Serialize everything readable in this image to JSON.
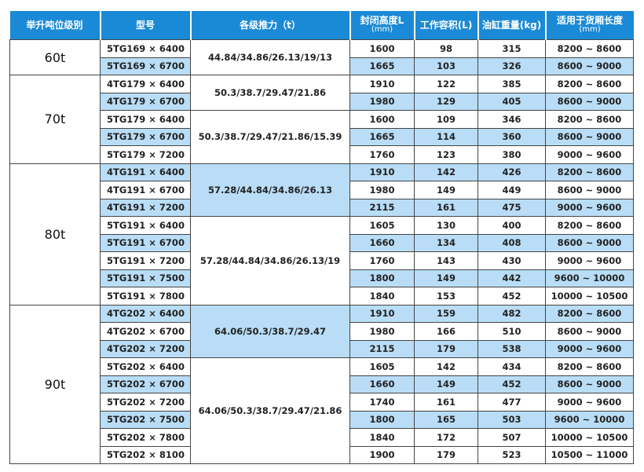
{
  "header": [
    {
      "title": "举升吨位级别"
    },
    {
      "title": "型号"
    },
    {
      "title": "各级推力（t）"
    },
    {
      "title": "封闭高度L",
      "unit": "(mm)"
    },
    {
      "title": "工作容积(L)"
    },
    {
      "title": "油缸重量(kg)"
    },
    {
      "title": "适用于货厢长度",
      "unit": "(mm)"
    }
  ],
  "groups": [
    {
      "tonnage": "60t",
      "subgroups": [
        {
          "thrust": "44.84/34.86/26.13/19/13",
          "shaded": false,
          "rows": [
            {
              "model": "5TG169 × 6400",
              "height": "1600",
              "volume": "98",
              "weight": "315",
              "length": "8200 ~ 8600",
              "shaded": false
            },
            {
              "model": "5TG169 × 6700",
              "height": "1665",
              "volume": "103",
              "weight": "326",
              "length": "8600 ~ 9000",
              "shaded": true
            }
          ]
        }
      ]
    },
    {
      "tonnage": "70t",
      "subgroups": [
        {
          "thrust": "50.3/38.7/29.47/21.86",
          "shaded": false,
          "rows": [
            {
              "model": "4TG179 × 6400",
              "height": "1910",
              "volume": "122",
              "weight": "385",
              "length": "8200 ~ 8600",
              "shaded": false
            },
            {
              "model": "4TG179 × 6700",
              "height": "1980",
              "volume": "129",
              "weight": "405",
              "length": "8600 ~ 9000",
              "shaded": true
            }
          ]
        },
        {
          "thrust": "50.3/38.7/29.47/21.86/15.39",
          "shaded": false,
          "rows": [
            {
              "model": "5TG179 × 6400",
              "height": "1600",
              "volume": "109",
              "weight": "346",
              "length": "8200 ~ 8600",
              "shaded": false
            },
            {
              "model": "5TG179 × 6700",
              "height": "1665",
              "volume": "114",
              "weight": "360",
              "length": "8600 ~ 9000",
              "shaded": true
            },
            {
              "model": "5TG179 × 7200",
              "height": "1760",
              "volume": "123",
              "weight": "380",
              "length": "9000 ~ 9600",
              "shaded": false
            }
          ]
        }
      ]
    },
    {
      "tonnage": "80t",
      "subgroups": [
        {
          "thrust": "57.28/44.84/34.86/26.13",
          "shaded": true,
          "rows": [
            {
              "model": "4TG191 × 6400",
              "height": "1910",
              "volume": "142",
              "weight": "426",
              "length": "8200 ~ 8600",
              "shaded": true
            },
            {
              "model": "4TG191 × 6700",
              "height": "1980",
              "volume": "149",
              "weight": "449",
              "length": "8600 ~ 9000",
              "shaded": false
            },
            {
              "model": "4TG191 × 7200",
              "height": "2115",
              "volume": "161",
              "weight": "475",
              "length": "9000 ~ 9600",
              "shaded": true
            }
          ]
        },
        {
          "thrust": "57.28/44.84/34.86/26.13/19",
          "shaded": false,
          "rows": [
            {
              "model": "5TG191 × 6400",
              "height": "1605",
              "volume": "130",
              "weight": "400",
              "length": "8200 ~ 8600",
              "shaded": false
            },
            {
              "model": "5TG191 × 6700",
              "height": "1660",
              "volume": "134",
              "weight": "408",
              "length": "8600 ~ 9000",
              "shaded": true
            },
            {
              "model": "5TG191 × 7200",
              "height": "1760",
              "volume": "143",
              "weight": "430",
              "length": "9000 ~ 9600",
              "shaded": false
            },
            {
              "model": "5TG191 × 7500",
              "height": "1800",
              "volume": "149",
              "weight": "442",
              "length": "9600 ~ 10000",
              "shaded": true
            },
            {
              "model": "5TG191 × 7800",
              "height": "1840",
              "volume": "153",
              "weight": "452",
              "length": "10000 ~ 10500",
              "shaded": false
            }
          ]
        }
      ]
    },
    {
      "tonnage": "90t",
      "subgroups": [
        {
          "thrust": "64.06/50.3/38.7/29.47",
          "shaded": true,
          "rows": [
            {
              "model": "4TG202 × 6400",
              "height": "1910",
              "volume": "159",
              "weight": "482",
              "length": "8200 ~ 8600",
              "shaded": true
            },
            {
              "model": "4TG202 × 6700",
              "height": "1980",
              "volume": "166",
              "weight": "510",
              "length": "8600 ~ 9000",
              "shaded": false
            },
            {
              "model": "4TG202 × 7200",
              "height": "2115",
              "volume": "179",
              "weight": "538",
              "length": "9000 ~ 9600",
              "shaded": true
            }
          ]
        },
        {
          "thrust": "64.06/50.3/38.7/29.47/21.86",
          "shaded": false,
          "rows": [
            {
              "model": "5TG202 × 6400",
              "height": "1605",
              "volume": "142",
              "weight": "434",
              "length": "8200 ~ 8600",
              "shaded": false
            },
            {
              "model": "5TG202 × 6700",
              "height": "1660",
              "volume": "149",
              "weight": "452",
              "length": "8600 ~ 9000",
              "shaded": true
            },
            {
              "model": "5TG202 × 7200",
              "height": "1740",
              "volume": "161",
              "weight": "477",
              "length": "9000 ~ 9600",
              "shaded": false
            },
            {
              "model": "5TG202 × 7500",
              "height": "1800",
              "volume": "165",
              "weight": "503",
              "length": "9600 ~ 10000",
              "shaded": true
            },
            {
              "model": "5TG202 × 7800",
              "height": "1840",
              "volume": "172",
              "weight": "507",
              "length": "10000 ~ 10500",
              "shaded": false
            },
            {
              "model": "5TG202 × 8100",
              "height": "1900",
              "volume": "179",
              "weight": "523",
              "length": "10500 ~ 11000",
              "shaded": false
            }
          ]
        }
      ]
    }
  ]
}
